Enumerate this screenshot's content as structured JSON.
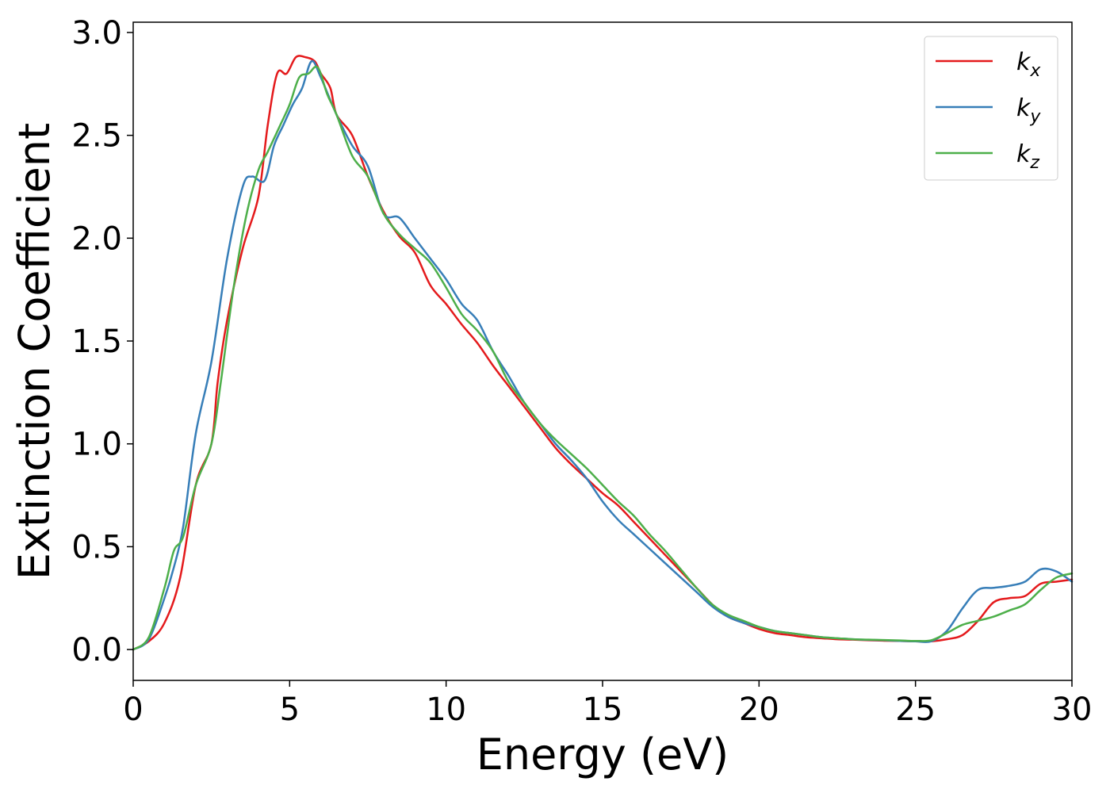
{
  "chart_data": {
    "type": "line",
    "xlabel": "Energy (eV)",
    "ylabel": "Extinction Coefficient",
    "xlim": [
      0,
      30
    ],
    "ylim": [
      -0.15,
      3.05
    ],
    "xticks": [
      "0",
      "5",
      "10",
      "15",
      "20",
      "25",
      "30"
    ],
    "yticks": [
      "0.0",
      "0.5",
      "1.0",
      "1.5",
      "2.0",
      "2.5",
      "3.0"
    ],
    "grid": false,
    "legend_position": "top-right",
    "series": [
      {
        "name": "k",
        "subscript": "x",
        "color": "#e41a1c",
        "x": [
          0,
          0.5,
          1,
          1.5,
          2,
          2.5,
          2.7,
          3,
          3.5,
          4,
          4.3,
          4.6,
          4.9,
          5.2,
          5.5,
          5.8,
          6,
          6.3,
          6.5,
          7,
          7.5,
          8,
          8.5,
          9,
          9.5,
          10,
          10.5,
          11,
          11.5,
          12,
          12.5,
          13,
          13.5,
          14,
          14.5,
          15,
          15.5,
          16,
          16.5,
          17,
          17.5,
          18,
          18.5,
          19,
          19.5,
          20,
          20.5,
          21,
          21.5,
          22,
          22.5,
          23,
          23.5,
          24,
          24.5,
          25,
          25.5,
          26,
          26.5,
          27,
          27.5,
          28,
          28.5,
          29,
          29.5,
          30
        ],
        "y": [
          0,
          0.04,
          0.13,
          0.35,
          0.8,
          1.0,
          1.3,
          1.6,
          1.95,
          2.2,
          2.55,
          2.8,
          2.8,
          2.88,
          2.88,
          2.86,
          2.8,
          2.73,
          2.6,
          2.5,
          2.3,
          2.13,
          2.01,
          1.93,
          1.77,
          1.68,
          1.58,
          1.49,
          1.38,
          1.28,
          1.18,
          1.08,
          0.98,
          0.9,
          0.83,
          0.76,
          0.7,
          0.62,
          0.54,
          0.46,
          0.38,
          0.3,
          0.22,
          0.16,
          0.13,
          0.1,
          0.08,
          0.07,
          0.06,
          0.055,
          0.05,
          0.048,
          0.045,
          0.043,
          0.042,
          0.04,
          0.04,
          0.05,
          0.07,
          0.14,
          0.23,
          0.25,
          0.26,
          0.32,
          0.33,
          0.34
        ]
      },
      {
        "name": "k",
        "subscript": "y",
        "color": "#377eb8",
        "x": [
          0,
          0.5,
          1,
          1.3,
          1.6,
          2,
          2.5,
          3,
          3.5,
          3.8,
          4.2,
          4.5,
          4.8,
          5.1,
          5.4,
          5.7,
          6,
          6.5,
          7,
          7.5,
          8,
          8.5,
          9,
          9.5,
          10,
          10.5,
          11,
          11.5,
          12,
          12.5,
          13,
          13.5,
          14,
          14.5,
          15,
          15.5,
          16,
          16.5,
          17,
          17.5,
          18,
          18.5,
          19,
          19.5,
          20,
          20.5,
          21,
          21.5,
          22,
          22.5,
          23,
          23.5,
          24,
          24.5,
          25,
          25.5,
          26,
          26.5,
          27,
          27.5,
          28,
          28.5,
          29,
          29.5,
          30
        ],
        "y": [
          0,
          0.05,
          0.25,
          0.4,
          0.6,
          1.05,
          1.4,
          1.9,
          2.25,
          2.3,
          2.28,
          2.45,
          2.55,
          2.65,
          2.73,
          2.86,
          2.78,
          2.6,
          2.45,
          2.35,
          2.12,
          2.1,
          2.0,
          1.9,
          1.8,
          1.68,
          1.6,
          1.45,
          1.33,
          1.2,
          1.1,
          1.0,
          0.92,
          0.83,
          0.72,
          0.63,
          0.56,
          0.49,
          0.42,
          0.35,
          0.28,
          0.21,
          0.16,
          0.13,
          0.11,
          0.09,
          0.08,
          0.07,
          0.06,
          0.055,
          0.05,
          0.047,
          0.045,
          0.042,
          0.04,
          0.04,
          0.09,
          0.2,
          0.29,
          0.3,
          0.31,
          0.33,
          0.39,
          0.38,
          0.33
        ]
      },
      {
        "name": "k",
        "subscript": "z",
        "color": "#4daf4a",
        "x": [
          0,
          0.5,
          1,
          1.3,
          1.6,
          2,
          2.5,
          2.8,
          3.2,
          3.6,
          4,
          4.3,
          4.7,
          5,
          5.3,
          5.6,
          5.9,
          6.2,
          6.5,
          7,
          7.5,
          8,
          8.5,
          9,
          9.5,
          10,
          10.5,
          11,
          11.5,
          12,
          12.5,
          13,
          13.5,
          14,
          14.5,
          15,
          15.5,
          16,
          16.5,
          17,
          17.5,
          18,
          18.5,
          19,
          19.5,
          20,
          20.5,
          21,
          21.5,
          22,
          22.5,
          23,
          23.5,
          24,
          24.5,
          25,
          25.5,
          26,
          26.5,
          27,
          27.5,
          28,
          28.5,
          29,
          29.5,
          30
        ],
        "y": [
          0,
          0.06,
          0.3,
          0.48,
          0.55,
          0.8,
          1.0,
          1.3,
          1.75,
          2.1,
          2.33,
          2.42,
          2.55,
          2.65,
          2.78,
          2.8,
          2.83,
          2.7,
          2.6,
          2.4,
          2.3,
          2.12,
          2.02,
          1.95,
          1.88,
          1.76,
          1.63,
          1.55,
          1.45,
          1.3,
          1.2,
          1.1,
          1.02,
          0.95,
          0.88,
          0.8,
          0.72,
          0.65,
          0.56,
          0.48,
          0.39,
          0.3,
          0.22,
          0.17,
          0.14,
          0.11,
          0.09,
          0.08,
          0.07,
          0.06,
          0.055,
          0.05,
          0.048,
          0.046,
          0.044,
          0.042,
          0.045,
          0.08,
          0.12,
          0.14,
          0.16,
          0.19,
          0.22,
          0.29,
          0.35,
          0.37
        ]
      }
    ]
  }
}
